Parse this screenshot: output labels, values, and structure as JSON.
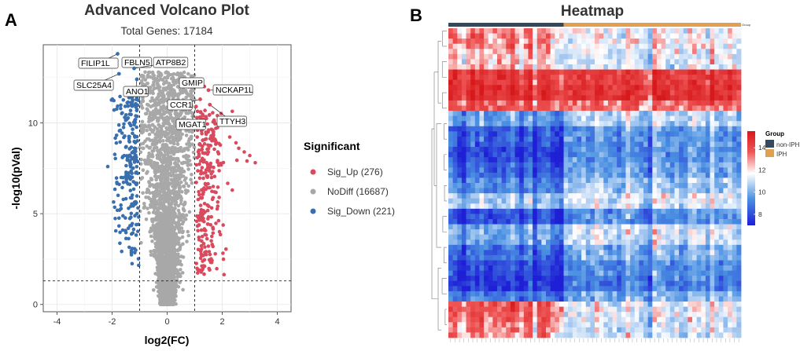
{
  "figure": {
    "panel_a_letter": "A",
    "panel_b_letter": "B"
  },
  "chart_data": [
    {
      "type": "scatter",
      "title": "Advanced Volcano Plot",
      "subtitle": "Total Genes: 17184",
      "xlabel": "log2(FC)",
      "ylabel": "-log10(pVal)",
      "xlim": [
        -4.5,
        4.5
      ],
      "ylim": [
        -0.4,
        14.3
      ],
      "x_ticks": [
        -4,
        -2,
        0,
        2,
        4
      ],
      "y_ticks": [
        0,
        5,
        10
      ],
      "grid": true,
      "thresholds": {
        "fc": [
          -1,
          1
        ],
        "pval_log": 1.3
      },
      "legend": {
        "title": "Significant",
        "position": "right",
        "entries": [
          {
            "key": "Sig_Up",
            "label": "Sig_Up (276)",
            "count": 276,
            "color": "#d94a5e"
          },
          {
            "key": "NoDiff",
            "label": "NoDiff (16687)",
            "count": 16687,
            "color": "#a8a8a8"
          },
          {
            "key": "Sig_Down",
            "label": "Sig_Down (221)",
            "count": 221,
            "color": "#3a6fae"
          }
        ]
      },
      "annotations": [
        {
          "label": "FILIP1L",
          "x": -1.8,
          "y": 13.8
        },
        {
          "label": "FBLN5",
          "x": -1.5,
          "y": 13.4
        },
        {
          "label": "ATP8B2",
          "x": -1.2,
          "y": 13.0
        },
        {
          "label": "SLC25A4",
          "x": -1.75,
          "y": 12.7
        },
        {
          "label": "ANO1",
          "x": -1.1,
          "y": 12.4
        },
        {
          "label": "GMIP",
          "x": 1.35,
          "y": 12.0
        },
        {
          "label": "NCKAP1L",
          "x": 1.5,
          "y": 11.8
        },
        {
          "label": "CCR1",
          "x": 1.2,
          "y": 11.3
        },
        {
          "label": "TTYH3",
          "x": 1.55,
          "y": 11.0
        },
        {
          "label": "MGAT1",
          "x": 1.05,
          "y": 10.9
        }
      ]
    },
    {
      "type": "heatmap",
      "title": "Heatmap",
      "rows": 60,
      "columns": 66,
      "group_split_column": 26,
      "scale_ticks": [
        8,
        10,
        12,
        14
      ],
      "scale_range": [
        7,
        15.5
      ],
      "scale_colors": [
        "#1f1fd6",
        "#4a90e2",
        "#ffffff",
        "#ee5555",
        "#d7191c"
      ],
      "group_legend": {
        "title": "Group",
        "bar_label": "Group",
        "entries": [
          {
            "label": "non-IPH",
            "color": "#34495e"
          },
          {
            "label": "IPH",
            "color": "#e0a050"
          }
        ]
      },
      "row_band_values": [
        12.5,
        12.0,
        14.5,
        14.8,
        13.5,
        10.5,
        9.2,
        8.8,
        9.4,
        10.2,
        11.2,
        9.0,
        10.8,
        9.6,
        8.9,
        8.5,
        9.8,
        12.6,
        12.2
      ],
      "row_band_rows": [
        4,
        4,
        3,
        3,
        2,
        3,
        4,
        3,
        3,
        3,
        3,
        3,
        4,
        3,
        3,
        3,
        2,
        4,
        3
      ],
      "group_contrast": [
        0.8,
        0.6,
        0.2,
        0.1,
        0.3,
        -0.6,
        -0.8,
        -1.0,
        -0.9,
        -0.7,
        -0.3,
        -0.9,
        -0.7,
        -0.8,
        -0.9,
        -0.8,
        -0.6,
        1.3,
        1.1
      ]
    }
  ]
}
